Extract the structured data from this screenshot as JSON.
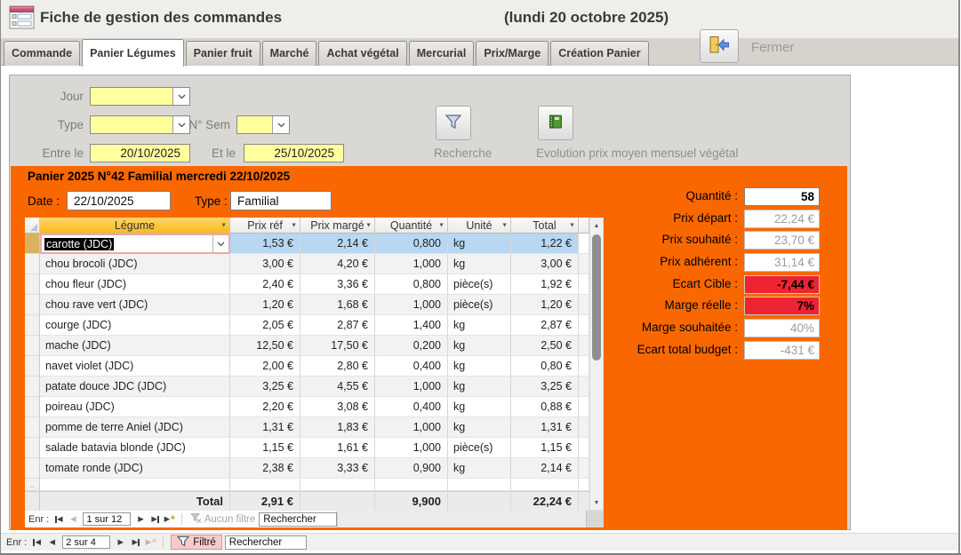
{
  "titlebar": {
    "title": "Fiche de gestion des commandes",
    "date": "(lundi 20 octobre 2025)",
    "close_label": "Fermer"
  },
  "tabs": [
    {
      "label": "Commande",
      "active": false
    },
    {
      "label": "Panier Légumes",
      "active": true
    },
    {
      "label": "Panier fruit",
      "active": false
    },
    {
      "label": "Marché",
      "active": false
    },
    {
      "label": "Achat végétal",
      "active": false
    },
    {
      "label": "Mercurial",
      "active": false
    },
    {
      "label": "Prix/Marge",
      "active": false
    },
    {
      "label": "Création Panier",
      "active": false
    }
  ],
  "filters": {
    "jour_label": "Jour",
    "jour_value": "",
    "type_label": "Type",
    "type_value": "",
    "sem_label": "N° Sem",
    "sem_value": "",
    "entre_label": "Entre le",
    "entre_value": "20/10/2025",
    "et_label": "Et le",
    "et_value": "25/10/2025",
    "recherche_label": "Recherche",
    "evolution_label": "Evolution prix moyen mensuel végétal"
  },
  "panier": {
    "title": "Panier 2025 N°42 Familial mercredi 22/10/2025",
    "date_label": "Date :",
    "date_value": "22/10/2025",
    "type_label": "Type :",
    "type_value": "Familial",
    "table": {
      "columns": [
        "Légume",
        "Prix réf",
        "Prix margé",
        "Quantité",
        "Unité",
        "Total"
      ],
      "selected_row_index": 0,
      "rows": [
        [
          "carotte (JDC)",
          "1,53 €",
          "2,14 €",
          "0,800",
          "kg",
          "1,22 €"
        ],
        [
          "chou brocoli (JDC)",
          "3,00 €",
          "4,20 €",
          "1,000",
          "kg",
          "3,00 €"
        ],
        [
          "chou fleur (JDC)",
          "2,40 €",
          "3,36 €",
          "0,800",
          "pièce(s)",
          "1,92 €"
        ],
        [
          "chou rave vert (JDC)",
          "1,20 €",
          "1,68 €",
          "1,000",
          "pièce(s)",
          "1,20 €"
        ],
        [
          "courge (JDC)",
          "2,05 €",
          "2,87 €",
          "1,400",
          "kg",
          "2,87 €"
        ],
        [
          "mache (JDC)",
          "12,50 €",
          "17,50 €",
          "0,200",
          "kg",
          "2,50 €"
        ],
        [
          "navet violet (JDC)",
          "2,00 €",
          "2,80 €",
          "0,400",
          "kg",
          "0,80 €"
        ],
        [
          "patate douce JDC (JDC)",
          "3,25 €",
          "4,55 €",
          "1,000",
          "kg",
          "3,25 €"
        ],
        [
          "poireau (JDC)",
          "2,20 €",
          "3,08 €",
          "0,400",
          "kg",
          "0,88 €"
        ],
        [
          "pomme de terre Aniel (JDC)",
          "1,31 €",
          "1,83 €",
          "1,000",
          "kg",
          "1,31 €"
        ],
        [
          "salade batavia blonde (JDC)",
          "1,15 €",
          "1,61 €",
          "1,000",
          "pièce(s)",
          "1,15 €"
        ],
        [
          "tomate ronde (JDC)",
          "2,38 €",
          "3,33 €",
          "0,900",
          "kg",
          "2,14 €"
        ]
      ],
      "total": {
        "label": "Total",
        "prix_ref": "2,91 €",
        "quantite": "9,900",
        "total": "22,24 €"
      }
    },
    "summary": [
      {
        "label": "Quantité :",
        "value": "58",
        "style": "editable"
      },
      {
        "label": "Prix départ :",
        "value": "22,24 €",
        "style": "readonly"
      },
      {
        "label": "Prix souhaité :",
        "value": "23,70 €",
        "style": "readonly"
      },
      {
        "label": "Prix adhérent :",
        "value": "31,14 €",
        "style": "readonly"
      },
      {
        "label": "Ecart Cible :",
        "value": "-7,44 €",
        "style": "alert"
      },
      {
        "label": "Marge réelle :",
        "value": "7%",
        "style": "alert"
      },
      {
        "label": "Marge souhaitée :",
        "value": "40%",
        "style": "readonly"
      },
      {
        "label": "Ecart total budget :",
        "value": "-431 €",
        "style": "readonly"
      }
    ],
    "nav": {
      "label": "Enr :",
      "position": "1 sur 12",
      "filter_label": "Aucun filtre",
      "search_label": "Rechercher"
    }
  },
  "outer_nav": {
    "label": "Enr :",
    "position": "2 sur 4",
    "filter_label": "Filtré",
    "search_label": "Rechercher"
  },
  "colors": {
    "accent_orange": "#F96800",
    "alert_red": "#EE2433",
    "selection_blue": "#B7D7F2",
    "field_yellow": "#FFFF9E",
    "header_amber": "#FBBB1C"
  }
}
